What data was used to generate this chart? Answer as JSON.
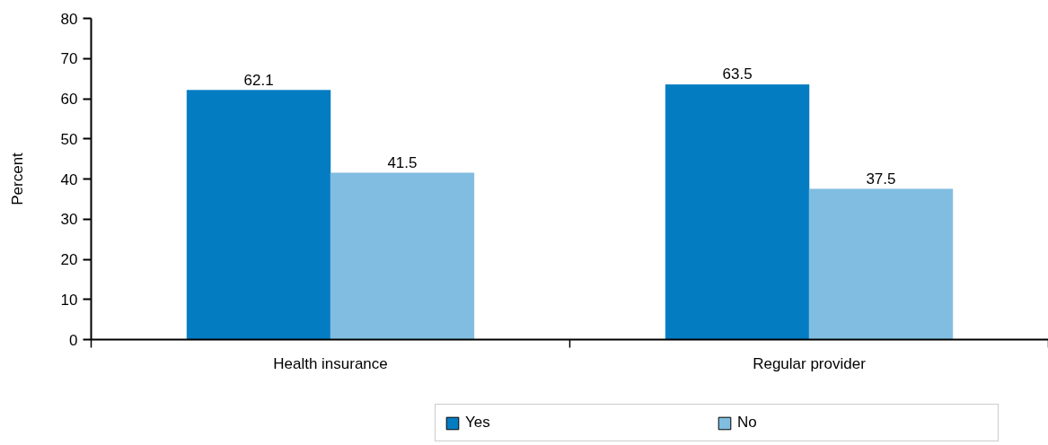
{
  "chart_data": {
    "type": "bar",
    "ylabel": "Percent",
    "categories": [
      "Health insurance",
      "Regular provider"
    ],
    "series": [
      {
        "name": "Yes",
        "color": "#047cc2",
        "values": [
          62.1,
          63.5
        ]
      },
      {
        "name": "No",
        "color": "#80bde0",
        "values": [
          41.5,
          37.5
        ]
      }
    ],
    "ylim": [
      0,
      80
    ],
    "yticks": [
      0,
      10,
      20,
      30,
      40,
      50,
      60,
      70,
      80
    ],
    "data_labels": true,
    "legend": "bottom"
  }
}
